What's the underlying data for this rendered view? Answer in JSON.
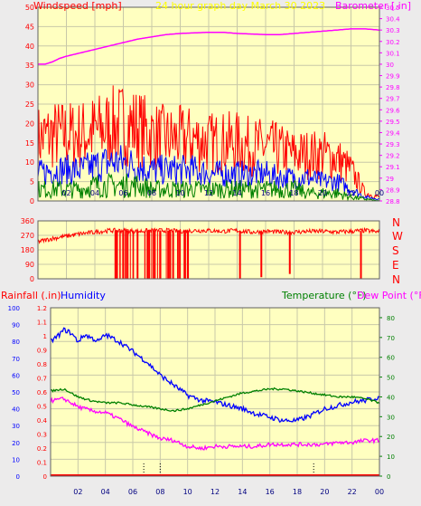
{
  "header": {
    "windspeed_label": "Windspeed [mph]",
    "title": "24 hour graph day   March 30 2023",
    "barometer_label": "Barometer [.in]"
  },
  "direction_labels": [
    "N",
    "W",
    "S",
    "E",
    "N"
  ],
  "bottom_header": {
    "rainfall_label": "Rainfall (.in)",
    "humidity_label": "Humidity",
    "temperature_label": "Temperature (°F)",
    "dewpoint_label": "Dew Point (°F)"
  },
  "colors": {
    "plot_bg": "#ffffc0",
    "grid": "#c8c8a8",
    "wind_gust": "#ff0000",
    "wind_avg": "#0000ff",
    "wind_low": "#008000",
    "barometer": "#ff00ff",
    "direction": "#ff0000",
    "humidity": "#0000ff",
    "temperature": "#008000",
    "dewpoint": "#ff00ff",
    "rainfall": "#ff0000"
  },
  "chart_data": [
    {
      "type": "line",
      "name": "wind_barometer",
      "x_tick_labels": [
        "02",
        "04",
        "06",
        "08",
        "10",
        "12",
        "14",
        "16",
        "18",
        "20",
        "22",
        "00"
      ],
      "xlim": [
        0,
        24
      ],
      "y_left": {
        "label": "Windspeed [mph]",
        "ylim": [
          0,
          50
        ],
        "ticks": [
          0,
          5,
          10,
          15,
          20,
          25,
          30,
          35,
          40,
          45,
          50
        ]
      },
      "y_right": {
        "label": "Barometer [.in]",
        "ylim": [
          28.8,
          30.5
        ],
        "ticks": [
          "28.8",
          "28.9",
          "29",
          "29.1",
          "29.2",
          "29.3",
          "29.4",
          "29.5",
          "29.6",
          "29.7",
          "29.8",
          "29.9",
          "30",
          "30.1",
          "30.2",
          "30.3",
          "30.4",
          "30.5"
        ]
      },
      "series": [
        {
          "name": "Barometer [.in]",
          "axis": "right",
          "x": [
            0,
            0.5,
            1,
            1.5,
            2,
            3,
            4,
            5,
            6,
            7,
            8,
            9,
            10,
            11,
            12,
            13,
            14,
            15,
            16,
            17,
            18,
            19,
            20,
            21,
            22,
            23,
            24
          ],
          "values": [
            30.0,
            30.0,
            30.02,
            30.05,
            30.07,
            30.1,
            30.13,
            30.16,
            30.19,
            30.22,
            30.24,
            30.26,
            30.27,
            30.275,
            30.28,
            30.28,
            30.27,
            30.265,
            30.26,
            30.26,
            30.27,
            30.28,
            30.29,
            30.3,
            30.31,
            30.31,
            30.3
          ]
        },
        {
          "name": "gust",
          "axis": "left",
          "x": [
            0,
            1,
            2,
            3,
            4,
            5,
            6,
            7,
            8,
            9,
            10,
            11,
            12,
            13,
            14,
            15,
            16,
            17,
            18,
            19,
            20,
            21,
            22,
            23,
            24
          ],
          "values": [
            16,
            17,
            17,
            17,
            18,
            19,
            20,
            19,
            17,
            16,
            16,
            16,
            15,
            15,
            15,
            14,
            14,
            13,
            12,
            12,
            12,
            11,
            8,
            2,
            1
          ]
        },
        {
          "name": "average",
          "axis": "left",
          "x": [
            0,
            1,
            2,
            3,
            4,
            5,
            6,
            7,
            8,
            9,
            10,
            11,
            12,
            13,
            14,
            15,
            16,
            17,
            18,
            19,
            20,
            21,
            22,
            23,
            24
          ],
          "values": [
            7,
            8,
            8,
            8,
            9,
            10,
            10,
            9,
            8,
            8,
            8,
            8,
            7,
            7,
            7,
            7,
            7,
            6,
            6,
            6,
            5,
            5,
            3,
            1,
            0.5
          ]
        },
        {
          "name": "low",
          "axis": "left",
          "x": [
            0,
            1,
            2,
            3,
            4,
            5,
            6,
            7,
            8,
            9,
            10,
            11,
            12,
            13,
            14,
            15,
            16,
            17,
            18,
            19,
            20,
            21,
            22,
            23,
            24
          ],
          "values": [
            3,
            3,
            3,
            3,
            4,
            4,
            4,
            4,
            3,
            3,
            3,
            3,
            3,
            3,
            3,
            3,
            3,
            3,
            3,
            2,
            2,
            2,
            1,
            0.5,
            0
          ]
        }
      ]
    },
    {
      "type": "line",
      "name": "wind_direction",
      "xlim": [
        0,
        24
      ],
      "y_left": {
        "ylim": [
          0,
          360
        ],
        "ticks": [
          0,
          90,
          180,
          270,
          360
        ]
      },
      "series": [
        {
          "name": "direction",
          "x": [
            0,
            1,
            2,
            3,
            4,
            5,
            6,
            7,
            8,
            9,
            10,
            11,
            12,
            13,
            14,
            15,
            16,
            17,
            18,
            19,
            20,
            21,
            22,
            23,
            24
          ],
          "values": [
            230,
            250,
            265,
            280,
            290,
            300,
            300,
            295,
            300,
            300,
            295,
            300,
            300,
            295,
            300,
            290,
            295,
            290,
            290,
            295,
            295,
            290,
            295,
            300,
            290
          ]
        },
        {
          "name": "drops_to",
          "x": [
            5.5,
            6.0,
            6.3,
            7.0,
            7.7,
            8.2,
            8.6,
            9.2,
            9.5,
            10.3,
            14.2,
            15.7,
            17.7,
            22.7
          ],
          "values": [
            0,
            0,
            0,
            0,
            0,
            0,
            0,
            0,
            0,
            0,
            0,
            10,
            30,
            0
          ]
        }
      ]
    },
    {
      "type": "line",
      "name": "temp_humidity",
      "x_tick_labels": [
        "02",
        "04",
        "06",
        "08",
        "10",
        "12",
        "14",
        "16",
        "18",
        "20",
        "22",
        "00"
      ],
      "xlim": [
        0,
        24
      ],
      "y_humidity": {
        "label": "Humidity",
        "ylim": [
          0,
          100
        ],
        "ticks": [
          0,
          10,
          20,
          30,
          40,
          50,
          60,
          70,
          80,
          90,
          100
        ]
      },
      "y_rain": {
        "label": "Rainfall (.in)",
        "ylim": [
          0,
          1.2
        ],
        "ticks": [
          "0",
          "0.1",
          "0.2",
          "0.3",
          "0.4",
          "0.5",
          "0.6",
          "0.7",
          "0.8",
          "0.9",
          "1",
          "1.1",
          "1.2"
        ]
      },
      "y_right": {
        "label": "Temperature (°F)",
        "ylim": [
          0,
          85
        ],
        "ticks": [
          0,
          10,
          20,
          30,
          40,
          50,
          60,
          70,
          80
        ]
      },
      "series": [
        {
          "name": "Humidity",
          "axis": "humidity",
          "x": [
            0,
            0.5,
            1,
            1.5,
            2,
            2.5,
            3,
            3.5,
            4,
            4.5,
            5,
            6,
            7,
            8,
            9,
            10,
            11,
            12,
            13,
            14,
            15,
            16,
            17,
            18,
            19,
            20,
            21,
            22,
            23,
            24
          ],
          "values": [
            80,
            83,
            87,
            85,
            80,
            84,
            82,
            80,
            84,
            82,
            80,
            74,
            68,
            60,
            54,
            48,
            45,
            44,
            42,
            40,
            37,
            35,
            33,
            33,
            36,
            40,
            42,
            44,
            45,
            47
          ]
        },
        {
          "name": "Temperature (°F)",
          "axis": "right",
          "x": [
            0,
            1,
            2,
            3,
            4,
            5,
            6,
            7,
            8,
            9,
            10,
            11,
            12,
            13,
            14,
            15,
            16,
            17,
            18,
            19,
            20,
            21,
            22,
            23,
            24
          ],
          "values": [
            43,
            44,
            40,
            38,
            37,
            37,
            36,
            35,
            34,
            33,
            34,
            36,
            38,
            40,
            42,
            43,
            44,
            44,
            43,
            42,
            41,
            40,
            40,
            39,
            37
          ]
        },
        {
          "name": "Dew Point (°F)",
          "axis": "right",
          "x": [
            0,
            1,
            2,
            3,
            4,
            5,
            6,
            7,
            8,
            9,
            10,
            11,
            12,
            13,
            14,
            15,
            16,
            17,
            18,
            19,
            20,
            21,
            22,
            23,
            24
          ],
          "values": [
            38,
            39,
            35,
            33,
            32,
            29,
            25,
            22,
            19,
            18,
            15,
            14,
            15,
            15,
            15,
            15,
            16,
            16,
            16,
            16,
            16,
            17,
            17,
            18,
            18
          ]
        },
        {
          "name": "Rainfall (.in)",
          "axis": "rain",
          "x": [
            0,
            24
          ],
          "values": [
            0,
            0
          ]
        }
      ]
    }
  ]
}
